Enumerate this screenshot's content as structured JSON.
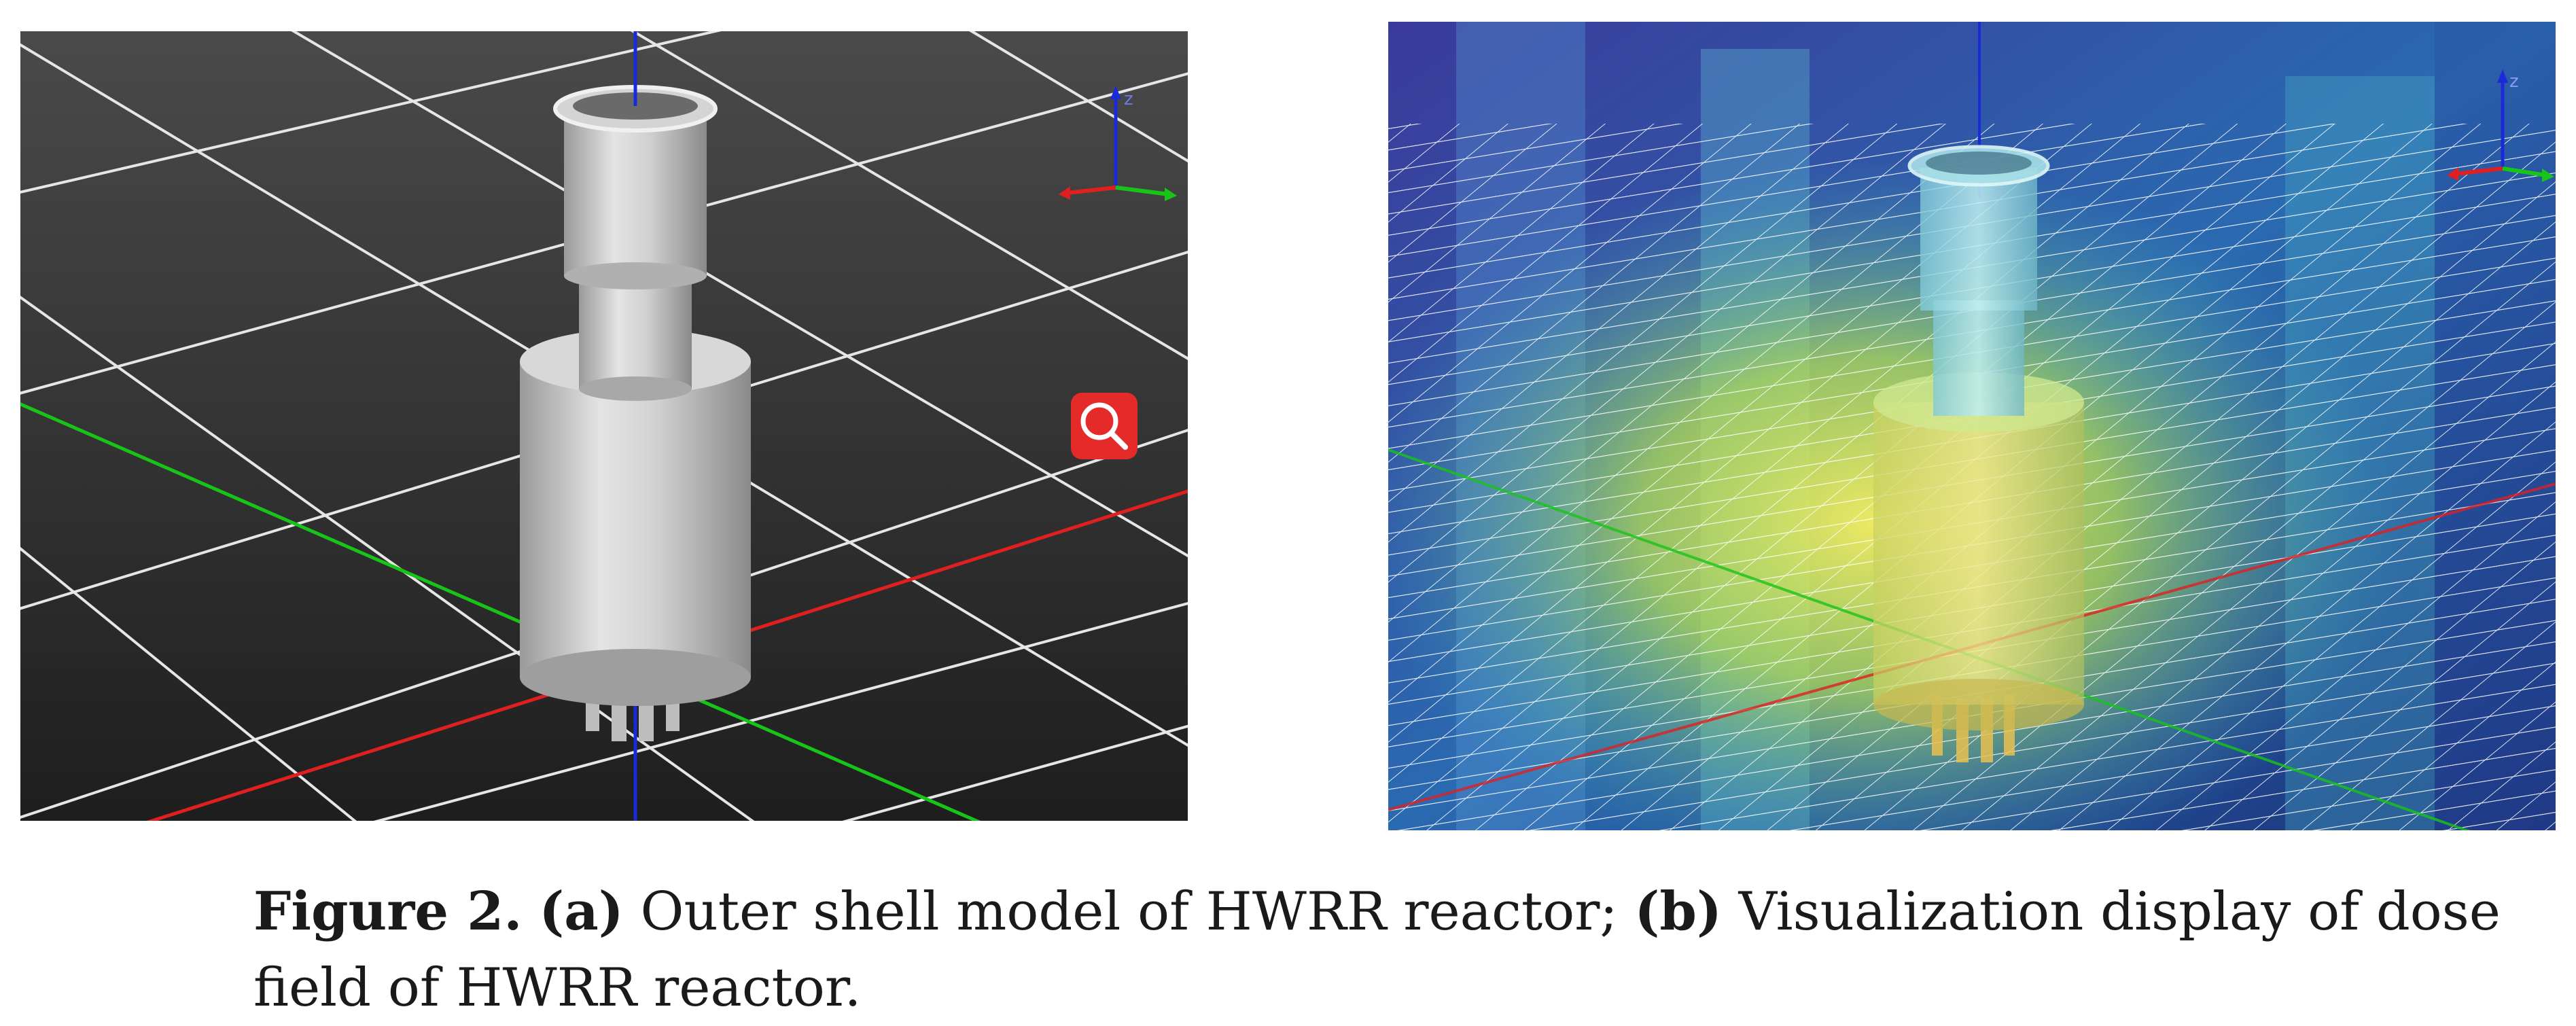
{
  "figure": {
    "panel_a": {
      "axis_indicator": {
        "z_label": "z"
      },
      "icons": [
        "search-icon"
      ],
      "colors": {
        "background": "#2a2a2a",
        "grid": "#e8e8e8",
        "axis_x": "#e02020",
        "axis_y": "#18c418",
        "axis_z": "#1a2ad8",
        "model": "#c8c8c8",
        "search_badge": "#e52a2a"
      }
    },
    "panel_b": {
      "axis_indicator": {
        "z_label": "z"
      },
      "colors": {
        "field_low": "#1a3a8a",
        "field_mid": "#38b0c8",
        "field_high": "#f4e040",
        "grid": "#ffffff"
      }
    },
    "caption": {
      "label": "Figure 2.",
      "part_a_tag": "(a)",
      "part_a_text": " Outer shell model of HWRR reactor; ",
      "part_b_tag": "(b)",
      "part_b_text": " Visualization display of dose field of HWRR reactor."
    }
  }
}
